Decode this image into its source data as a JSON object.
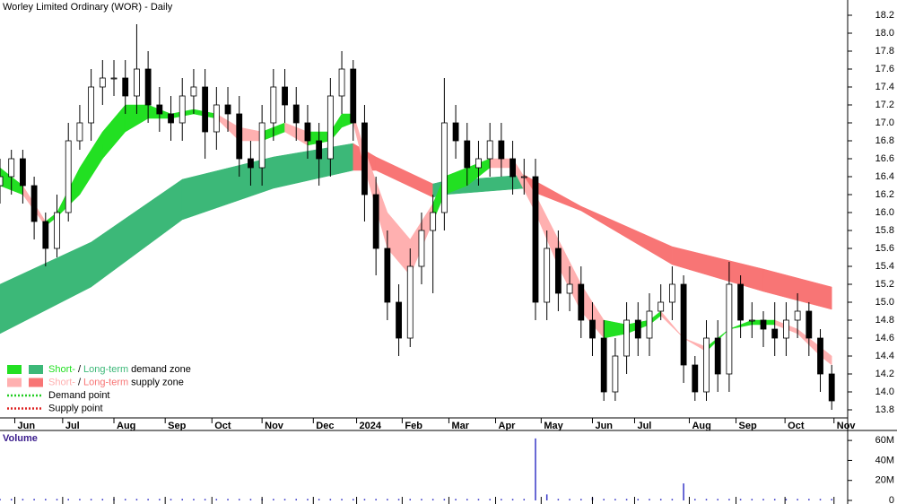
{
  "chart_data": {
    "type": "candlestick",
    "title": "Worley Limited Ordinary (WOR) - Daily",
    "xlim": [
      0,
      74.4
    ],
    "ylim": [
      13.71,
      18.37
    ],
    "xticks": [
      {
        "value": 1.3,
        "label": "Jun"
      },
      {
        "value": 5.5,
        "label": "Jul"
      },
      {
        "value": 10,
        "label": "Aug"
      },
      {
        "value": 14.5,
        "label": "Sep"
      },
      {
        "value": 18.6,
        "label": "Oct"
      },
      {
        "value": 23,
        "label": "Nov"
      },
      {
        "value": 27.5,
        "label": "Dec"
      },
      {
        "value": 31.3,
        "label": "2024"
      },
      {
        "value": 35.3,
        "label": "Feb"
      },
      {
        "value": 39.4,
        "label": "Mar"
      },
      {
        "value": 43.5,
        "label": "Apr"
      },
      {
        "value": 47.5,
        "label": "May"
      },
      {
        "value": 52,
        "label": "Jun"
      },
      {
        "value": 55.7,
        "label": "Jul"
      },
      {
        "value": 60.5,
        "label": "Aug"
      },
      {
        "value": 64.6,
        "label": "Sep"
      },
      {
        "value": 68.9,
        "label": "Oct"
      },
      {
        "value": 73.2,
        "label": "Nov"
      }
    ],
    "yticks": [
      13.8,
      {
        "value": 14,
        "label": "14.0"
      },
      14.2,
      14.4,
      14.6,
      14.8,
      {
        "value": 15,
        "label": "15.0"
      },
      15.2,
      15.4,
      15.6,
      15.8,
      {
        "value": 16,
        "label": "16.0"
      },
      16.2,
      16.4,
      16.6,
      16.8,
      {
        "value": 17,
        "label": "17.0"
      },
      17.2,
      17.4,
      17.6,
      17.8,
      {
        "value": 18,
        "label": "18.0"
      },
      18.2
    ],
    "colors": {
      "up": "#ffffff",
      "down": "#000000",
      "wick": "#000000",
      "short_demand": "#22e022",
      "long_demand": "#3cb878",
      "short_supply": "#ffb0b0",
      "long_supply": "#f87575",
      "demand_point": "#22cc22",
      "supply_point": "#dd2222"
    },
    "x": [
      0,
      1,
      2,
      3,
      4,
      5,
      6,
      7,
      8,
      9,
      10,
      11,
      12,
      13,
      14,
      15,
      16,
      17,
      18,
      19,
      20,
      21,
      22,
      23,
      24,
      25,
      26,
      27,
      28,
      29,
      30,
      31,
      32,
      33,
      34,
      35,
      36,
      37,
      38,
      39,
      40,
      41,
      42,
      43,
      44,
      45,
      46,
      47,
      48,
      49,
      50,
      51,
      52,
      53,
      54,
      55,
      56,
      57,
      58,
      59,
      60,
      61,
      62,
      63,
      64,
      65,
      66,
      67,
      68,
      69,
      70,
      71,
      72,
      73
    ],
    "open": [
      16.3,
      16.4,
      16.6,
      16.3,
      15.9,
      15.6,
      16.0,
      16.8,
      17.0,
      17.4,
      17.5,
      17.5,
      17.3,
      17.6,
      17.2,
      17.1,
      17.0,
      17.3,
      17.4,
      16.9,
      17.2,
      17.1,
      16.6,
      16.5,
      17.0,
      17.4,
      17.2,
      17.0,
      16.8,
      16.6,
      17.3,
      17.6,
      17.0,
      16.2,
      15.6,
      15.0,
      14.6,
      15.4,
      15.8,
      16.0,
      17.0,
      16.8,
      16.5,
      16.6,
      16.8,
      16.6,
      16.4,
      16.4,
      15.0,
      15.6,
      15.1,
      15.2,
      14.8,
      14.6,
      14.0,
      14.4,
      14.8,
      14.6,
      14.9,
      15.0,
      15.2,
      14.3,
      14.0,
      14.6,
      14.2,
      15.2,
      14.8,
      14.8,
      14.7,
      14.6,
      14.8,
      14.9,
      14.6,
      14.2
    ],
    "high": [
      16.6,
      16.7,
      16.7,
      16.4,
      16.0,
      16.2,
      17.0,
      17.2,
      17.6,
      17.7,
      17.7,
      17.7,
      18.1,
      17.8,
      17.4,
      17.3,
      17.5,
      17.6,
      17.6,
      17.4,
      17.4,
      17.3,
      16.8,
      17.2,
      17.6,
      17.6,
      17.4,
      17.2,
      17.0,
      17.5,
      17.8,
      17.7,
      17.2,
      16.4,
      15.8,
      15.2,
      15.6,
      16.0,
      16.2,
      17.5,
      17.2,
      17.0,
      16.8,
      17.0,
      17.0,
      16.8,
      16.6,
      16.6,
      15.8,
      15.8,
      15.4,
      15.4,
      15.0,
      14.8,
      14.6,
      15.0,
      15.0,
      15.1,
      15.2,
      15.4,
      15.3,
      14.4,
      14.8,
      14.8,
      15.45,
      15.3,
      15.0,
      14.9,
      15.0,
      15.0,
      15.1,
      15.0,
      14.7,
      14.3
    ],
    "low": [
      16.1,
      16.2,
      16.1,
      15.7,
      15.4,
      15.5,
      15.9,
      16.7,
      16.8,
      17.2,
      17.3,
      17.1,
      17.1,
      17.0,
      16.9,
      16.8,
      16.8,
      17.1,
      16.6,
      16.7,
      16.9,
      16.4,
      16.3,
      16.3,
      16.8,
      17.0,
      16.8,
      16.6,
      16.3,
      16.4,
      17.1,
      16.8,
      15.9,
      15.3,
      14.8,
      14.4,
      14.5,
      15.2,
      15.1,
      15.8,
      16.6,
      16.3,
      16.3,
      16.4,
      16.4,
      16.2,
      16.2,
      14.8,
      14.8,
      14.9,
      14.9,
      14.6,
      14.4,
      13.9,
      13.9,
      14.2,
      14.4,
      14.4,
      14.8,
      14.8,
      14.1,
      13.9,
      13.9,
      14.0,
      14.0,
      14.6,
      14.6,
      14.5,
      14.4,
      14.4,
      14.6,
      14.4,
      14.0,
      13.8
    ],
    "close": [
      16.4,
      16.6,
      16.3,
      15.9,
      15.6,
      16.0,
      16.8,
      17.0,
      17.4,
      17.5,
      17.5,
      17.3,
      17.6,
      17.2,
      17.1,
      17.0,
      17.3,
      17.4,
      16.9,
      17.2,
      17.1,
      16.6,
      16.5,
      17.0,
      17.4,
      17.2,
      17.0,
      16.8,
      16.6,
      17.3,
      17.6,
      17.0,
      16.2,
      15.6,
      15.0,
      14.6,
      15.4,
      15.8,
      16.0,
      17.0,
      16.8,
      16.5,
      16.6,
      16.8,
      16.6,
      16.4,
      16.4,
      15.0,
      15.6,
      15.1,
      15.2,
      14.8,
      14.6,
      14.0,
      14.4,
      14.8,
      14.6,
      14.9,
      15.0,
      15.2,
      14.3,
      14.0,
      14.6,
      14.2,
      15.2,
      14.8,
      14.8,
      14.7,
      14.6,
      14.8,
      14.9,
      14.6,
      14.2,
      13.9
    ],
    "long_term_zone": {
      "x": [
        0,
        8,
        16,
        24,
        31,
        33,
        38,
        39,
        46,
        51,
        59,
        67,
        73
      ],
      "upper": [
        15.2,
        15.67,
        16.37,
        16.62,
        16.77,
        16.62,
        16.32,
        16.35,
        16.42,
        16.07,
        15.62,
        15.37,
        15.17
      ],
      "lower": [
        14.65,
        15.17,
        15.92,
        16.27,
        16.47,
        16.47,
        16.17,
        16.2,
        16.27,
        16.02,
        15.42,
        15.12,
        14.92
      ],
      "state": [
        "long_demand",
        "long_demand",
        "long_demand",
        "long_demand",
        "long_supply",
        "long_supply",
        "long_demand",
        "long_demand",
        "long_supply",
        "long_supply",
        "long_supply",
        "long_supply"
      ]
    },
    "short_term_zone": {
      "x": [
        0,
        2,
        4,
        5,
        7,
        9,
        11,
        13,
        15,
        17,
        19,
        21,
        23,
        25,
        27,
        29,
        30,
        31,
        32,
        34,
        36,
        38,
        39,
        41,
        43,
        45,
        47,
        49,
        51,
        53,
        55,
        57,
        58,
        60,
        62,
        64,
        66,
        68,
        70,
        72,
        73
      ],
      "upper": [
        16.5,
        16.3,
        15.9,
        16.0,
        16.5,
        16.9,
        17.2,
        17.2,
        17.1,
        17.15,
        17.1,
        16.95,
        16.9,
        17.0,
        16.9,
        16.9,
        17.1,
        17.1,
        16.7,
        16.0,
        15.7,
        16.1,
        16.4,
        16.5,
        16.6,
        16.6,
        16.2,
        15.7,
        15.2,
        14.8,
        14.75,
        14.8,
        14.9,
        14.6,
        14.5,
        14.7,
        14.8,
        14.8,
        14.7,
        14.5,
        14.4
      ],
      "lower": [
        16.3,
        16.2,
        15.85,
        15.95,
        16.2,
        16.6,
        16.9,
        17.05,
        17.05,
        17.1,
        17.05,
        16.8,
        16.8,
        16.9,
        16.75,
        16.8,
        16.95,
        17.0,
        16.5,
        15.6,
        15.3,
        15.9,
        16.2,
        16.3,
        16.5,
        16.5,
        16.0,
        15.4,
        14.9,
        14.6,
        14.65,
        14.75,
        14.85,
        14.6,
        14.45,
        14.7,
        14.75,
        14.75,
        14.65,
        14.4,
        14.3
      ],
      "state": [
        "short_demand",
        "short_supply",
        "short_demand",
        "short_demand",
        "short_demand",
        "short_demand",
        "short_demand",
        "short_demand",
        "short_demand",
        "short_demand",
        "short_supply",
        "short_supply",
        "short_demand",
        "short_supply",
        "short_demand",
        "short_demand",
        "short_demand",
        "short_supply",
        "short_supply",
        "short_supply",
        "short_supply",
        "short_demand",
        "short_demand",
        "short_demand",
        "short_supply",
        "short_supply",
        "short_supply",
        "short_supply",
        "short_supply",
        "short_demand",
        "short_demand",
        "short_demand",
        "short_supply",
        "short_supply",
        "short_demand",
        "short_demand",
        "short_demand",
        "short_supply",
        "short_supply",
        "short_supply"
      ]
    },
    "legend": {
      "corner": "bottom-left",
      "items": [
        {
          "kind": "zone",
          "short_color": "short_demand",
          "long_color": "long_demand",
          "parts": [
            "Short-",
            "/",
            "Long-term",
            "demand zone"
          ]
        },
        {
          "kind": "zone",
          "short_color": "short_supply",
          "long_color": "long_supply",
          "parts": [
            "Short-",
            "/",
            "Long-term",
            "supply zone"
          ]
        },
        {
          "kind": "point",
          "color": "demand_point",
          "text": "Demand point"
        },
        {
          "kind": "point",
          "color": "supply_point",
          "text": "Supply point"
        }
      ]
    },
    "volume": {
      "type": "bar",
      "label": "Volume",
      "color": "#3838c8",
      "ylim": [
        0,
        70000000
      ],
      "yticks": [
        0,
        {
          "value": 20000000,
          "label": "20M"
        },
        {
          "value": 40000000,
          "label": "40M"
        },
        {
          "value": 60000000,
          "label": "60M"
        }
      ],
      "values": [
        1500000,
        1500000,
        1500000,
        1500000,
        1500000,
        1500000,
        1500000,
        1500000,
        1500000,
        1500000,
        1500000,
        1500000,
        1500000,
        1500000,
        1500000,
        1500000,
        1500000,
        1500000,
        1500000,
        1500000,
        1500000,
        1500000,
        1500000,
        1500000,
        1500000,
        1500000,
        1500000,
        1500000,
        1500000,
        1500000,
        1500000,
        1500000,
        1500000,
        1500000,
        1500000,
        1500000,
        1500000,
        1500000,
        1500000,
        1500000,
        1500000,
        1500000,
        1500000,
        1500000,
        1500000,
        1500000,
        1500000,
        62000000,
        6000000,
        1500000,
        1500000,
        1500000,
        3000000,
        1500000,
        1500000,
        1500000,
        1500000,
        1500000,
        1500000,
        1500000,
        17000000,
        1500000,
        1500000,
        1500000,
        1500000,
        1500000,
        1500000,
        1500000,
        1500000,
        1500000,
        1500000,
        1500000,
        1500000,
        1500000
      ]
    }
  }
}
